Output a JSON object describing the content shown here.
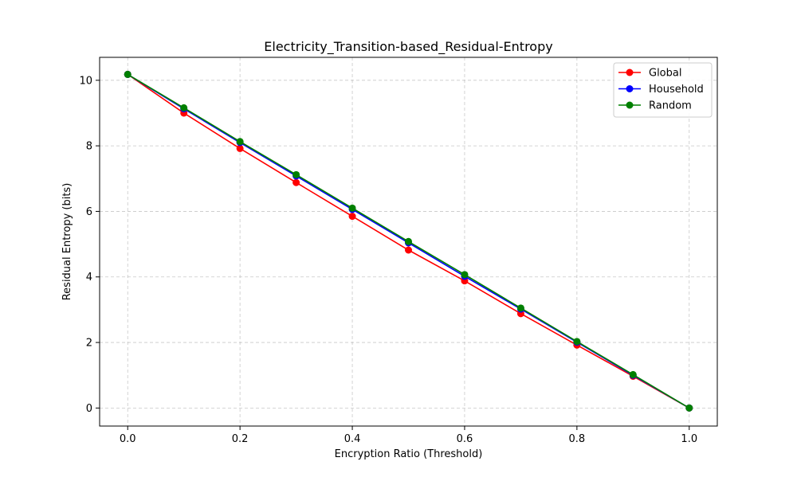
{
  "chart_data": {
    "type": "line",
    "title": "Electricity_Transition-based_Residual-Entropy",
    "xlabel": "Encryption Ratio (Threshold)",
    "ylabel": "Residual Entropy (bits)",
    "x": [
      0.0,
      0.1,
      0.2,
      0.3,
      0.4,
      0.5,
      0.6,
      0.7,
      0.8,
      0.9,
      1.0
    ],
    "xlim": [
      -0.05,
      1.05
    ],
    "ylim": [
      -0.55,
      10.7
    ],
    "xticks": [
      0.0,
      0.2,
      0.4,
      0.6,
      0.8,
      1.0
    ],
    "xtick_labels": [
      "0.0",
      "0.2",
      "0.4",
      "0.6",
      "0.8",
      "1.0"
    ],
    "yticks": [
      0,
      2,
      4,
      6,
      8,
      10
    ],
    "ytick_labels": [
      "0",
      "2",
      "4",
      "6",
      "8",
      "10"
    ],
    "grid": true,
    "legend_position": "top-right",
    "series": [
      {
        "name": "Global",
        "color": "#ff0000",
        "values": [
          10.18,
          9.0,
          7.92,
          6.88,
          5.85,
          4.82,
          3.88,
          2.88,
          1.92,
          0.97,
          0.0
        ]
      },
      {
        "name": "Household",
        "color": "#0000ff",
        "values": [
          10.18,
          9.13,
          8.1,
          7.08,
          6.06,
          5.04,
          4.02,
          3.02,
          2.01,
          1.0,
          0.0
        ]
      },
      {
        "name": "Random",
        "color": "#008000",
        "values": [
          10.18,
          9.16,
          8.13,
          7.12,
          6.1,
          5.08,
          4.07,
          3.05,
          2.03,
          1.02,
          0.0
        ]
      }
    ]
  }
}
